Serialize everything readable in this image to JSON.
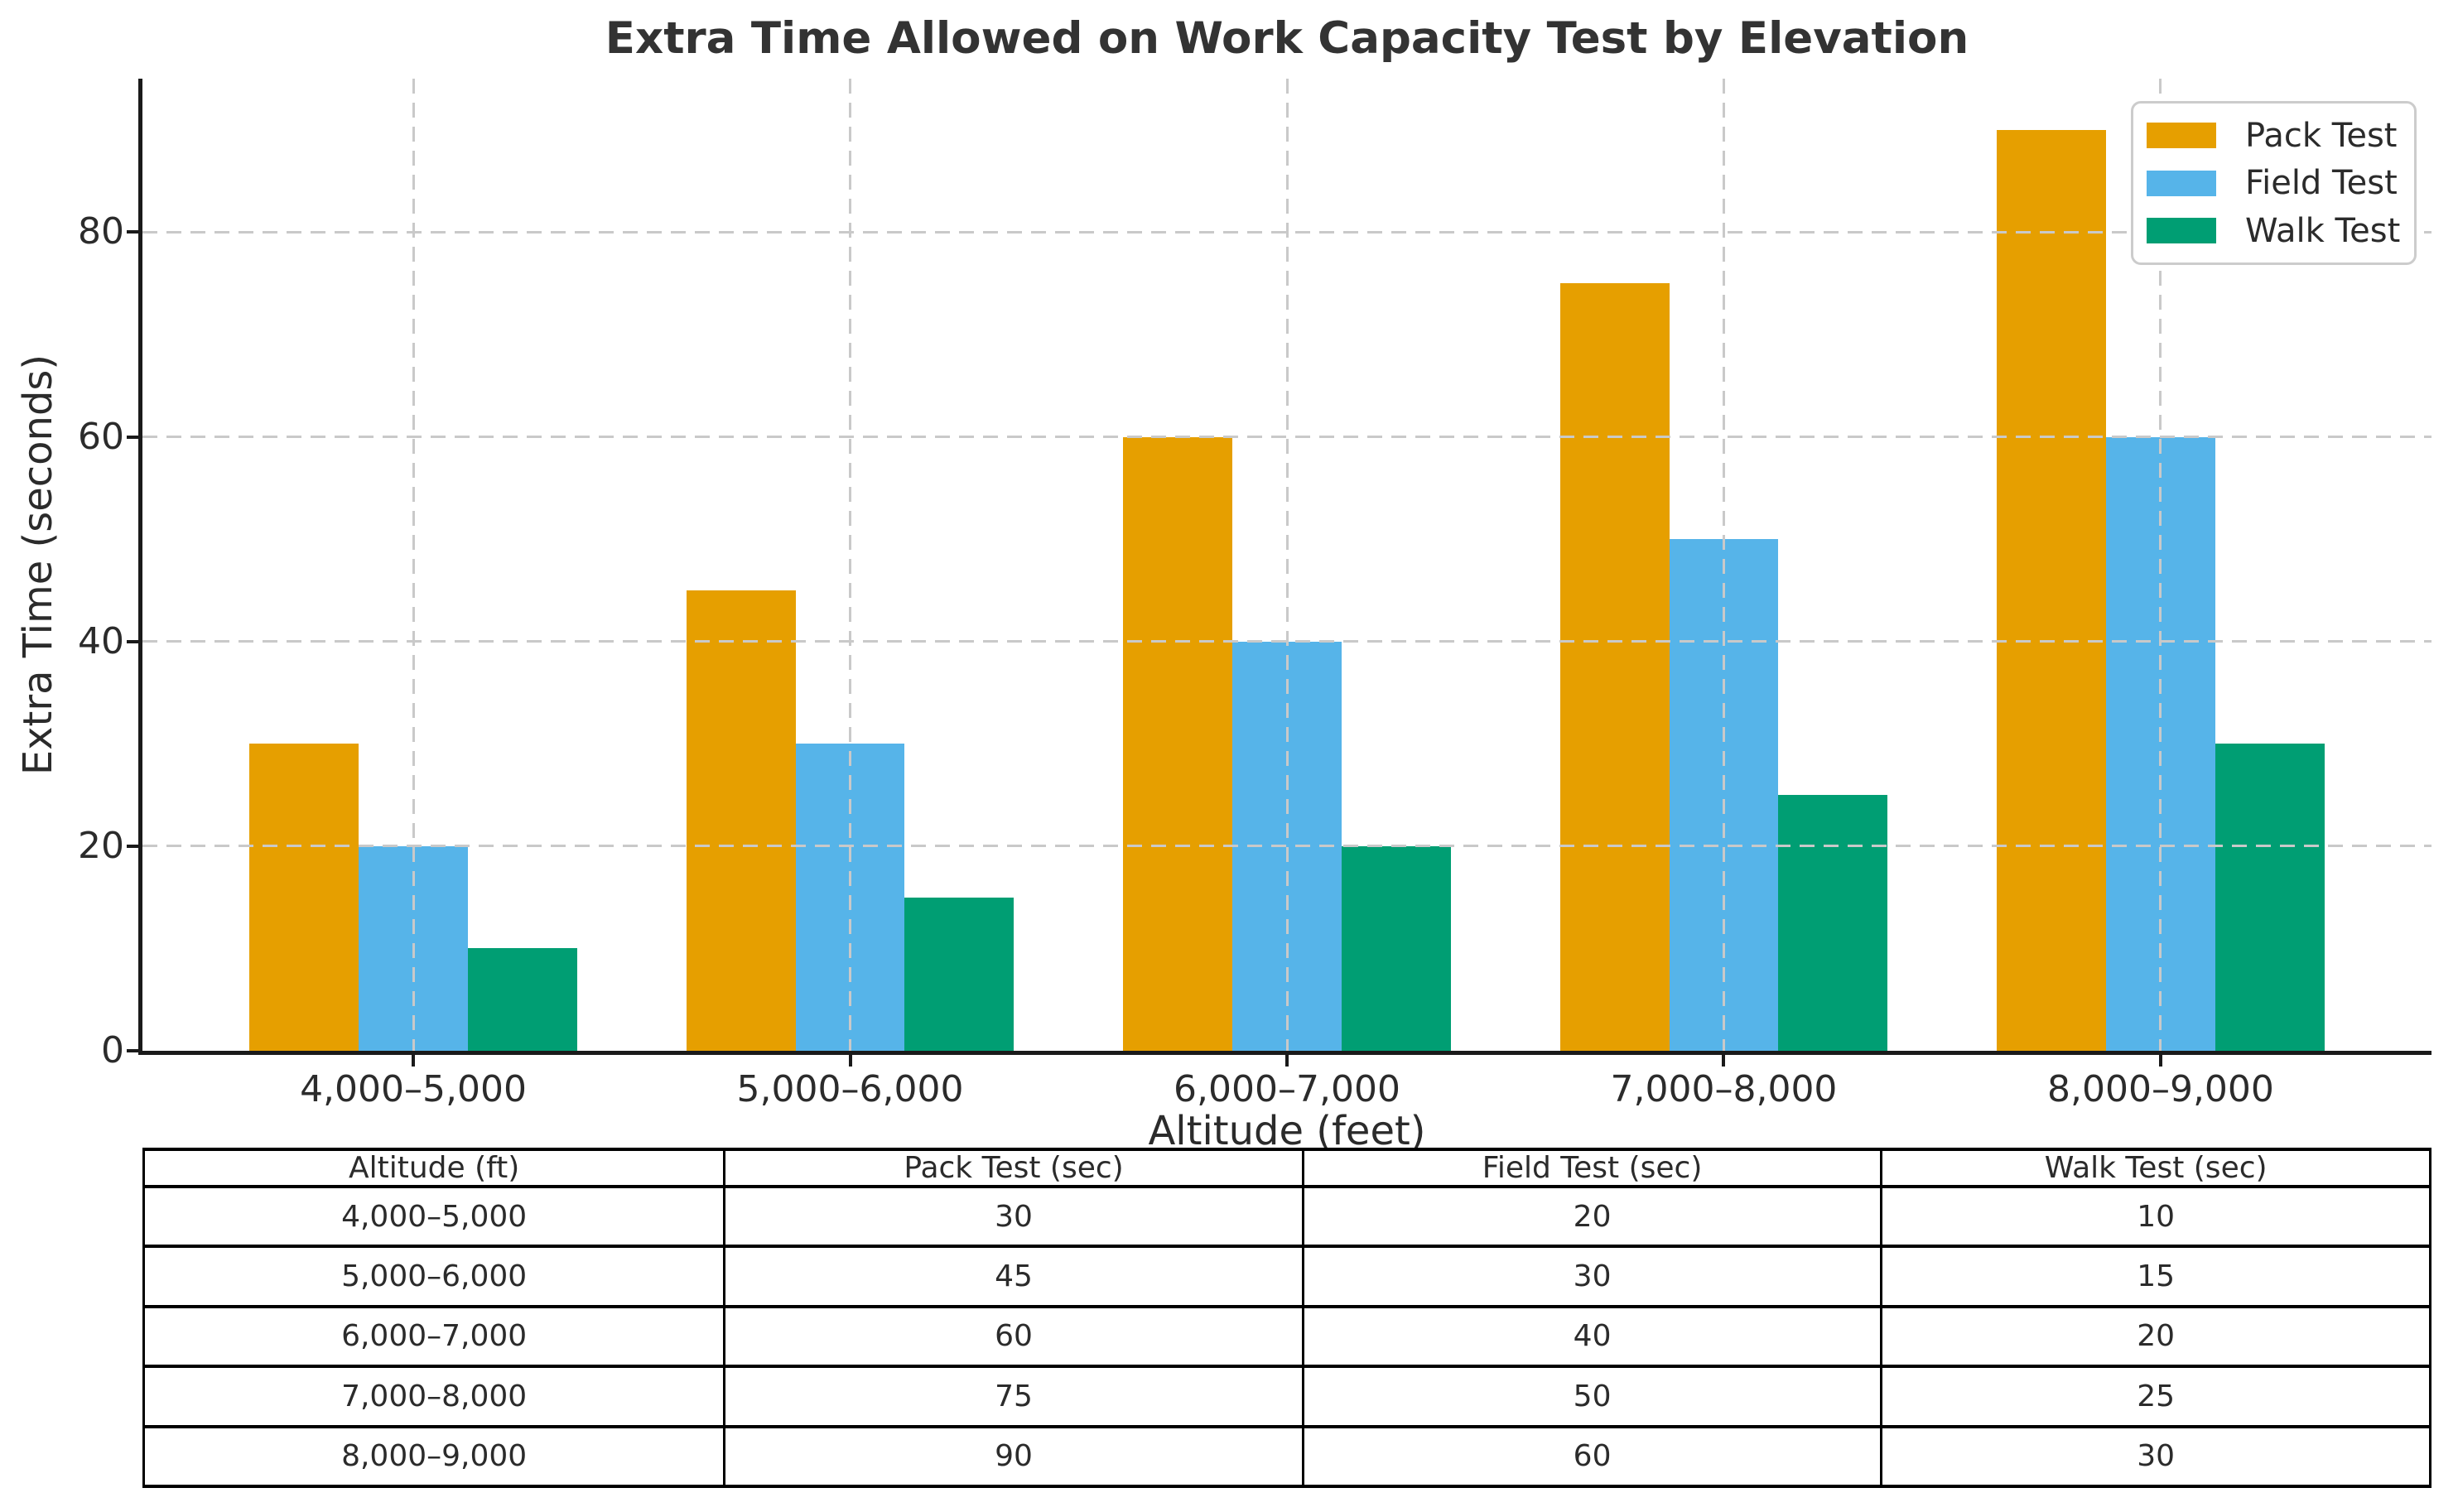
{
  "title": "Extra Time Allowed on Work Capacity Test by Elevation",
  "chart_data": {
    "type": "bar",
    "title": "Extra Time Allowed on Work Capacity Test by Elevation",
    "xlabel": "Altitude (feet)",
    "ylabel": "Extra Time (seconds)",
    "categories": [
      "4,000–5,000",
      "5,000–6,000",
      "6,000–7,000",
      "7,000–8,000",
      "8,000–9,000"
    ],
    "series": [
      {
        "name": "Pack Test",
        "color": "#E69F00",
        "values": [
          30,
          45,
          60,
          75,
          90
        ]
      },
      {
        "name": "Field Test",
        "color": "#56B4E9",
        "values": [
          20,
          30,
          40,
          50,
          60
        ]
      },
      {
        "name": "Walk Test",
        "color": "#009E73",
        "values": [
          10,
          15,
          20,
          25,
          30
        ]
      }
    ],
    "ylim": [
      0,
      95
    ],
    "yticks": [
      0,
      20,
      40,
      60,
      80
    ],
    "grid": true,
    "grid_style": "dashed",
    "legend_position": "upper right"
  },
  "table": {
    "headers": [
      "Altitude (ft)",
      "Pack Test (sec)",
      "Field Test (sec)",
      "Walk Test (sec)"
    ],
    "rows": [
      [
        "4,000–5,000",
        "30",
        "20",
        "10"
      ],
      [
        "5,000–6,000",
        "45",
        "30",
        "15"
      ],
      [
        "6,000–7,000",
        "60",
        "40",
        "20"
      ],
      [
        "7,000–8,000",
        "75",
        "50",
        "25"
      ],
      [
        "8,000–9,000",
        "90",
        "60",
        "30"
      ]
    ]
  },
  "colors": {
    "pack_test": "#E69F00",
    "field_test": "#56B4E9",
    "walk_test": "#009E73",
    "gridline": "#c9c9c9",
    "spine": "#1a1a1a",
    "text": "#2b2b2b",
    "title_text": "#333333",
    "legend_border": "#cccccc",
    "table_border": "#000000",
    "background": "#ffffff"
  }
}
